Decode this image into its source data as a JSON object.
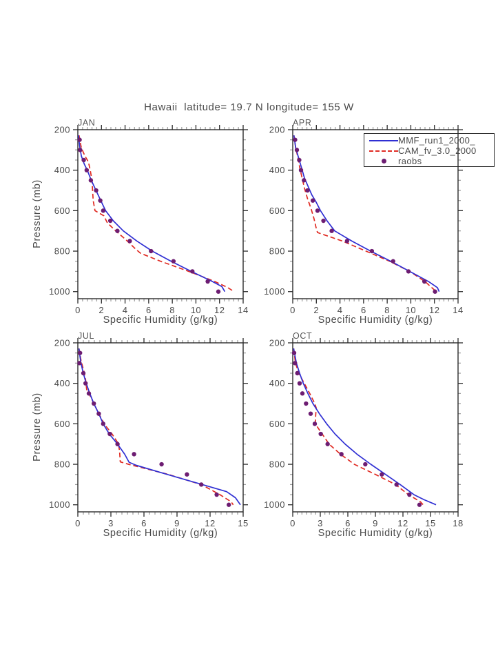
{
  "figure": {
    "title": "Hawaii  latitude= 19.7 N longitude= 155 W",
    "xlabel": "Specific Humidity (g/kg)",
    "ylabel": "Pressure (mb)"
  },
  "colors": {
    "mmf_line": "#2f2fd3",
    "cam_line": "#e02a22",
    "raobs_dot": "#6d1d72",
    "frame": "#2b2b2b",
    "minor_tick": "#9b9b9b",
    "text": "#4a4a4a"
  },
  "legend": {
    "location": "top-right of APR panel",
    "entries": [
      {
        "label": "MMF_run1_2000_",
        "style": "solid-line",
        "color": "#2f2fd3"
      },
      {
        "label": "CAM_fv_3.0_2000",
        "style": "dashed-line",
        "color": "#e02a22"
      },
      {
        "label": "raobs",
        "style": "dot",
        "color": "#6d1d72"
      }
    ]
  },
  "chart_data": [
    {
      "panel": "JAN",
      "type": "line",
      "xlabel": "Specific Humidity (g/kg)",
      "ylabel": "Pressure (mb)",
      "xlim": [
        0,
        14
      ],
      "xticks": [
        0,
        2,
        4,
        6,
        8,
        10,
        12,
        14
      ],
      "xminor_step": 0.4,
      "ylim": [
        1000,
        200
      ],
      "yticks": [
        200,
        400,
        600,
        800,
        1000
      ],
      "yminor_step": 50,
      "y_inverted": true,
      "grid": false,
      "series": [
        {
          "name": "MMF_run1_2000_",
          "type": "line",
          "linestyle": "solid",
          "color": "#2f2fd3",
          "points": [
            [
              0.05,
              228
            ],
            [
              0.15,
              280
            ],
            [
              0.3,
              330
            ],
            [
              0.55,
              370
            ],
            [
              0.8,
              400
            ],
            [
              1.1,
              445
            ],
            [
              1.5,
              495
            ],
            [
              1.9,
              545
            ],
            [
              2.35,
              600
            ],
            [
              3.0,
              650
            ],
            [
              3.85,
              700
            ],
            [
              5.0,
              750
            ],
            [
              6.3,
              800
            ],
            [
              7.9,
              850
            ],
            [
              9.6,
              900
            ],
            [
              11.4,
              950
            ],
            [
              12.2,
              975
            ],
            [
              12.45,
              1000
            ]
          ]
        },
        {
          "name": "CAM_fv_3.0_2000",
          "type": "line",
          "linestyle": "dashed",
          "color": "#e02a22",
          "points": [
            [
              0.1,
              228
            ],
            [
              0.3,
              290
            ],
            [
              0.6,
              330
            ],
            [
              0.9,
              360
            ],
            [
              1.05,
              400
            ],
            [
              1.2,
              450
            ],
            [
              1.25,
              500
            ],
            [
              1.3,
              550
            ],
            [
              1.45,
              600
            ],
            [
              2.2,
              625
            ],
            [
              2.5,
              660
            ],
            [
              3.2,
              700
            ],
            [
              4.0,
              740
            ],
            [
              4.9,
              790
            ],
            [
              5.3,
              810
            ],
            [
              7.0,
              850
            ],
            [
              9.4,
              900
            ],
            [
              11.6,
              950
            ],
            [
              12.7,
              980
            ],
            [
              13.1,
              995
            ]
          ]
        },
        {
          "name": "raobs",
          "type": "scatter",
          "color": "#6d1d72",
          "points": [
            [
              0.15,
              250
            ],
            [
              0.2,
              300
            ],
            [
              0.5,
              350
            ],
            [
              0.75,
              400
            ],
            [
              1.1,
              450
            ],
            [
              1.55,
              500
            ],
            [
              1.9,
              550
            ],
            [
              2.15,
              600
            ],
            [
              2.75,
              650
            ],
            [
              3.35,
              700
            ],
            [
              4.4,
              750
            ],
            [
              6.2,
              800
            ],
            [
              8.1,
              850
            ],
            [
              9.7,
              900
            ],
            [
              11.0,
              950
            ],
            [
              11.9,
              1000
            ]
          ]
        }
      ]
    },
    {
      "panel": "APR",
      "type": "line",
      "xlabel": "Specific Humidity (g/kg)",
      "ylabel": "Pressure (mb)",
      "xlim": [
        0,
        14
      ],
      "xticks": [
        0,
        2,
        4,
        6,
        8,
        10,
        12,
        14
      ],
      "xminor_step": 0.4,
      "ylim": [
        1000,
        200
      ],
      "yticks": [
        200,
        400,
        600,
        800,
        1000
      ],
      "yminor_step": 50,
      "y_inverted": true,
      "grid": false,
      "series": [
        {
          "name": "MMF_run1_2000_",
          "type": "line",
          "linestyle": "solid",
          "color": "#2f2fd3",
          "points": [
            [
              0.1,
              228
            ],
            [
              0.25,
              290
            ],
            [
              0.5,
              340
            ],
            [
              0.75,
              390
            ],
            [
              1.0,
              440
            ],
            [
              1.3,
              480
            ],
            [
              1.6,
              520
            ],
            [
              2.0,
              560
            ],
            [
              2.35,
              600
            ],
            [
              2.9,
              650
            ],
            [
              3.55,
              700
            ],
            [
              5.0,
              750
            ],
            [
              6.6,
              800
            ],
            [
              8.3,
              850
            ],
            [
              9.9,
              900
            ],
            [
              11.5,
              950
            ],
            [
              12.25,
              980
            ],
            [
              12.4,
              1000
            ]
          ]
        },
        {
          "name": "CAM_fv_3.0_2000",
          "type": "line",
          "linestyle": "dashed",
          "color": "#e02a22",
          "points": [
            [
              0.1,
              228
            ],
            [
              0.25,
              290
            ],
            [
              0.45,
              340
            ],
            [
              0.6,
              390
            ],
            [
              0.8,
              440
            ],
            [
              1.0,
              490
            ],
            [
              1.25,
              540
            ],
            [
              1.55,
              590
            ],
            [
              1.8,
              640
            ],
            [
              2.0,
              690
            ],
            [
              2.1,
              708
            ],
            [
              4.2,
              750
            ],
            [
              6.2,
              800
            ],
            [
              8.2,
              850
            ],
            [
              9.9,
              900
            ],
            [
              11.2,
              950
            ],
            [
              12.15,
              1000
            ]
          ]
        },
        {
          "name": "raobs",
          "type": "scatter",
          "color": "#6d1d72",
          "points": [
            [
              0.2,
              250
            ],
            [
              0.35,
              300
            ],
            [
              0.55,
              350
            ],
            [
              0.7,
              400
            ],
            [
              0.95,
              450
            ],
            [
              1.25,
              500
            ],
            [
              1.7,
              550
            ],
            [
              2.1,
              600
            ],
            [
              2.6,
              650
            ],
            [
              3.3,
              700
            ],
            [
              4.6,
              750
            ],
            [
              6.7,
              800
            ],
            [
              8.5,
              850
            ],
            [
              9.8,
              900
            ],
            [
              11.15,
              950
            ],
            [
              12.05,
              1000
            ]
          ]
        }
      ]
    },
    {
      "panel": "JUL",
      "type": "line",
      "xlabel": "Specific Humidity (g/kg)",
      "ylabel": "Pressure (mb)",
      "xlim": [
        0,
        15
      ],
      "xticks": [
        0,
        3,
        6,
        9,
        12,
        15
      ],
      "xminor_step": 0.5,
      "ylim": [
        1000,
        200
      ],
      "yticks": [
        200,
        400,
        600,
        800,
        1000
      ],
      "yminor_step": 50,
      "y_inverted": true,
      "grid": false,
      "series": [
        {
          "name": "MMF_run1_2000_",
          "type": "line",
          "linestyle": "solid",
          "color": "#2f2fd3",
          "points": [
            [
              0.1,
              228
            ],
            [
              0.25,
              290
            ],
            [
              0.45,
              340
            ],
            [
              0.7,
              390
            ],
            [
              1.05,
              445
            ],
            [
              1.45,
              500
            ],
            [
              1.9,
              550
            ],
            [
              2.3,
              600
            ],
            [
              2.85,
              650
            ],
            [
              3.6,
              700
            ],
            [
              4.25,
              750
            ],
            [
              4.65,
              790
            ],
            [
              5.3,
              805
            ],
            [
              8.1,
              850
            ],
            [
              11.3,
              900
            ],
            [
              13.5,
              935
            ],
            [
              14.3,
              965
            ],
            [
              14.75,
              1000
            ]
          ]
        },
        {
          "name": "CAM_fv_3.0_2000",
          "type": "line",
          "linestyle": "dashed",
          "color": "#e02a22",
          "points": [
            [
              0.1,
              228
            ],
            [
              0.3,
              290
            ],
            [
              0.55,
              340
            ],
            [
              0.7,
              380
            ],
            [
              0.8,
              430
            ],
            [
              1.1,
              460
            ],
            [
              1.5,
              505
            ],
            [
              1.95,
              555
            ],
            [
              2.45,
              605
            ],
            [
              3.1,
              650
            ],
            [
              3.7,
              700
            ],
            [
              3.8,
              745
            ],
            [
              3.85,
              788
            ],
            [
              4.6,
              800
            ],
            [
              8.2,
              850
            ],
            [
              11.2,
              900
            ],
            [
              12.9,
              950
            ],
            [
              13.9,
              985
            ],
            [
              14.1,
              1000
            ]
          ]
        },
        {
          "name": "raobs",
          "type": "scatter",
          "color": "#6d1d72",
          "points": [
            [
              0.2,
              250
            ],
            [
              0.15,
              300
            ],
            [
              0.5,
              350
            ],
            [
              0.7,
              400
            ],
            [
              1.0,
              450
            ],
            [
              1.45,
              500
            ],
            [
              1.9,
              550
            ],
            [
              2.3,
              600
            ],
            [
              2.9,
              650
            ],
            [
              3.6,
              700
            ],
            [
              5.1,
              750
            ],
            [
              7.6,
              800
            ],
            [
              9.9,
              850
            ],
            [
              11.2,
              900
            ],
            [
              12.6,
              950
            ],
            [
              13.7,
              1000
            ]
          ]
        }
      ]
    },
    {
      "panel": "OCT",
      "type": "line",
      "xlabel": "Specific Humidity (g/kg)",
      "ylabel": "Pressure (mb)",
      "xlim": [
        0,
        18
      ],
      "xticks": [
        0,
        3,
        6,
        9,
        12,
        15,
        18
      ],
      "xminor_step": 0.5,
      "ylim": [
        1000,
        200
      ],
      "yticks": [
        200,
        400,
        600,
        800,
        1000
      ],
      "yminor_step": 50,
      "y_inverted": true,
      "grid": false,
      "series": [
        {
          "name": "MMF_run1_2000_",
          "type": "line",
          "linestyle": "solid",
          "color": "#2f2fd3",
          "points": [
            [
              0.1,
              228
            ],
            [
              0.4,
              300
            ],
            [
              0.75,
              350
            ],
            [
              1.15,
              400
            ],
            [
              1.65,
              450
            ],
            [
              2.2,
              500
            ],
            [
              2.9,
              550
            ],
            [
              3.7,
              600
            ],
            [
              4.6,
              650
            ],
            [
              5.7,
              700
            ],
            [
              7.0,
              750
            ],
            [
              8.5,
              800
            ],
            [
              10.1,
              850
            ],
            [
              11.7,
              900
            ],
            [
              13.2,
              950
            ],
            [
              14.3,
              975
            ],
            [
              15.6,
              1000
            ]
          ]
        },
        {
          "name": "CAM_fv_3.0_2000",
          "type": "line",
          "linestyle": "dashed",
          "color": "#e02a22",
          "points": [
            [
              0.1,
              228
            ],
            [
              0.3,
              300
            ],
            [
              0.65,
              350
            ],
            [
              1.25,
              400
            ],
            [
              1.85,
              450
            ],
            [
              2.35,
              495
            ],
            [
              2.55,
              520
            ],
            [
              2.5,
              560
            ],
            [
              2.45,
              600
            ],
            [
              3.2,
              650
            ],
            [
              3.95,
              700
            ],
            [
              5.2,
              750
            ],
            [
              6.7,
              800
            ],
            [
              9.0,
              850
            ],
            [
              11.2,
              900
            ],
            [
              12.6,
              950
            ],
            [
              13.9,
              985
            ],
            [
              14.2,
              1000
            ]
          ]
        },
        {
          "name": "raobs",
          "type": "scatter",
          "color": "#6d1d72",
          "points": [
            [
              0.15,
              250
            ],
            [
              0.25,
              300
            ],
            [
              0.5,
              350
            ],
            [
              0.75,
              400
            ],
            [
              1.05,
              450
            ],
            [
              1.45,
              500
            ],
            [
              1.95,
              550
            ],
            [
              2.4,
              600
            ],
            [
              3.05,
              650
            ],
            [
              3.8,
              700
            ],
            [
              5.3,
              750
            ],
            [
              7.9,
              800
            ],
            [
              9.7,
              850
            ],
            [
              11.3,
              900
            ],
            [
              12.7,
              950
            ],
            [
              13.8,
              1000
            ]
          ]
        }
      ]
    }
  ]
}
